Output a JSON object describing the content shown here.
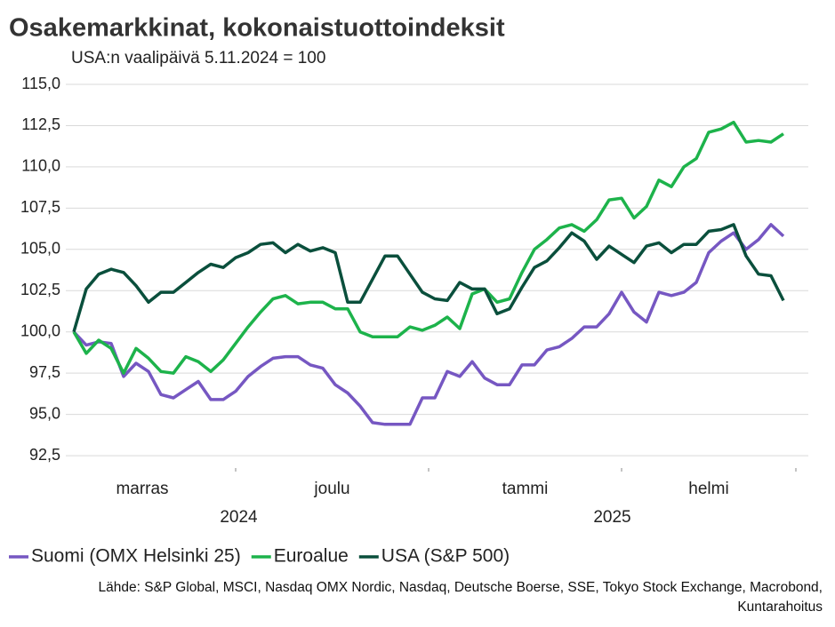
{
  "chart_data": {
    "type": "line",
    "title": "Osakemarkkinat, kokonaistuottoindeksit",
    "subtitle": "USA:n vaalipäivä 5.11.2024 = 100",
    "source": "Lähde: S&P Global, MSCI, Nasdaq OMX Nordic, Nasdaq, Deutsche Boerse, SSE, Tokyo Stock Exchange, Macrobond, Kuntarahoitus",
    "x": [
      4,
      6,
      8,
      10,
      12,
      14,
      16,
      18,
      20,
      22,
      24,
      26,
      28,
      30,
      32,
      34,
      36,
      38,
      40,
      42,
      44,
      46,
      48,
      50,
      52,
      54,
      56,
      58,
      60,
      62,
      64,
      66,
      68,
      70,
      72,
      74,
      76,
      78,
      80,
      82,
      84,
      86,
      88,
      90,
      92,
      94,
      96,
      98,
      100,
      102,
      104,
      106,
      108,
      110,
      112,
      114,
      116,
      118
    ],
    "xlim": [
      3,
      122
    ],
    "xticks": [
      30,
      61,
      92,
      120
    ],
    "months": [
      {
        "label": "marras",
        "from": 0,
        "to": 30
      },
      {
        "label": "joulu",
        "from": 30,
        "to": 61
      },
      {
        "label": "tammi",
        "from": 61,
        "to": 92
      },
      {
        "label": "helmi",
        "from": 92,
        "to": 120
      }
    ],
    "years": [
      {
        "label": "2024",
        "from": 0,
        "to": 61
      },
      {
        "label": "2025",
        "from": 61,
        "to": 120
      }
    ],
    "ylim": [
      91.75,
      115
    ],
    "yticks": [
      {
        "value": 92.5,
        "label": "92,5"
      },
      {
        "value": 95,
        "label": "95,0"
      },
      {
        "value": 97.5,
        "label": "97,5"
      },
      {
        "value": 100,
        "label": "100,0"
      },
      {
        "value": 102.5,
        "label": "102,5"
      },
      {
        "value": 105,
        "label": "105,0"
      },
      {
        "value": 107.5,
        "label": "107,5"
      },
      {
        "value": 110,
        "label": "110,0"
      },
      {
        "value": 112.5,
        "label": "112,5"
      },
      {
        "value": 115,
        "label": "115,0"
      }
    ],
    "grid": true,
    "legend": "bottom",
    "series": [
      {
        "name": "Suomi (OMX Helsinki 25)",
        "color": "#7657c2",
        "values": [
          100,
          99.2,
          99.4,
          99.3,
          97.3,
          98.1,
          97.6,
          96.2,
          96.0,
          96.5,
          97.0,
          95.9,
          95.9,
          96.4,
          97.3,
          97.9,
          98.4,
          98.5,
          98.5,
          98.0,
          97.8,
          96.8,
          96.3,
          95.5,
          94.5,
          94.4,
          94.4,
          94.4,
          96.0,
          96.0,
          97.6,
          97.3,
          98.2,
          97.2,
          96.8,
          96.8,
          98.0,
          98.0,
          98.9,
          99.1,
          99.6,
          100.3,
          100.3,
          101.1,
          102.4,
          101.2,
          100.6,
          102.4,
          102.2,
          102.4,
          103.0,
          104.8,
          105.5,
          106.0,
          105.0,
          105.6,
          106.5,
          105.8
        ]
      },
      {
        "name": "Euroalue",
        "color": "#1db34b",
        "values": [
          100,
          98.7,
          99.5,
          99.0,
          97.5,
          99.0,
          98.4,
          97.6,
          97.5,
          98.5,
          98.2,
          97.6,
          98.3,
          99.3,
          100.3,
          101.2,
          102.0,
          102.2,
          101.7,
          101.8,
          101.8,
          101.4,
          101.4,
          100.0,
          99.7,
          99.7,
          99.7,
          100.3,
          100.1,
          100.4,
          100.9,
          100.2,
          102.3,
          102.6,
          101.8,
          102.0,
          103.6,
          105.0,
          105.6,
          106.3,
          106.5,
          106.1,
          106.8,
          108.0,
          108.1,
          106.9,
          107.6,
          109.2,
          108.8,
          110.0,
          110.5,
          112.1,
          112.3,
          112.7,
          111.5,
          111.6,
          111.5,
          112.0
        ]
      },
      {
        "name": "USA (S&P 500)",
        "color": "#0a4f3c",
        "values": [
          100,
          102.6,
          103.5,
          103.8,
          103.6,
          102.8,
          101.8,
          102.4,
          102.4,
          103.0,
          103.6,
          104.1,
          103.9,
          104.5,
          104.8,
          105.3,
          105.4,
          104.8,
          105.3,
          104.9,
          105.1,
          104.8,
          101.8,
          101.8,
          103.2,
          104.6,
          104.6,
          103.5,
          102.4,
          102.0,
          101.9,
          103.0,
          102.6,
          102.6,
          101.1,
          101.4,
          102.7,
          103.9,
          104.3,
          105.1,
          106.0,
          105.5,
          104.4,
          105.2,
          104.7,
          104.2,
          105.2,
          105.4,
          104.8,
          105.3,
          105.3,
          106.1,
          106.2,
          106.5,
          104.6,
          103.5,
          103.4,
          101.9
        ]
      }
    ]
  }
}
